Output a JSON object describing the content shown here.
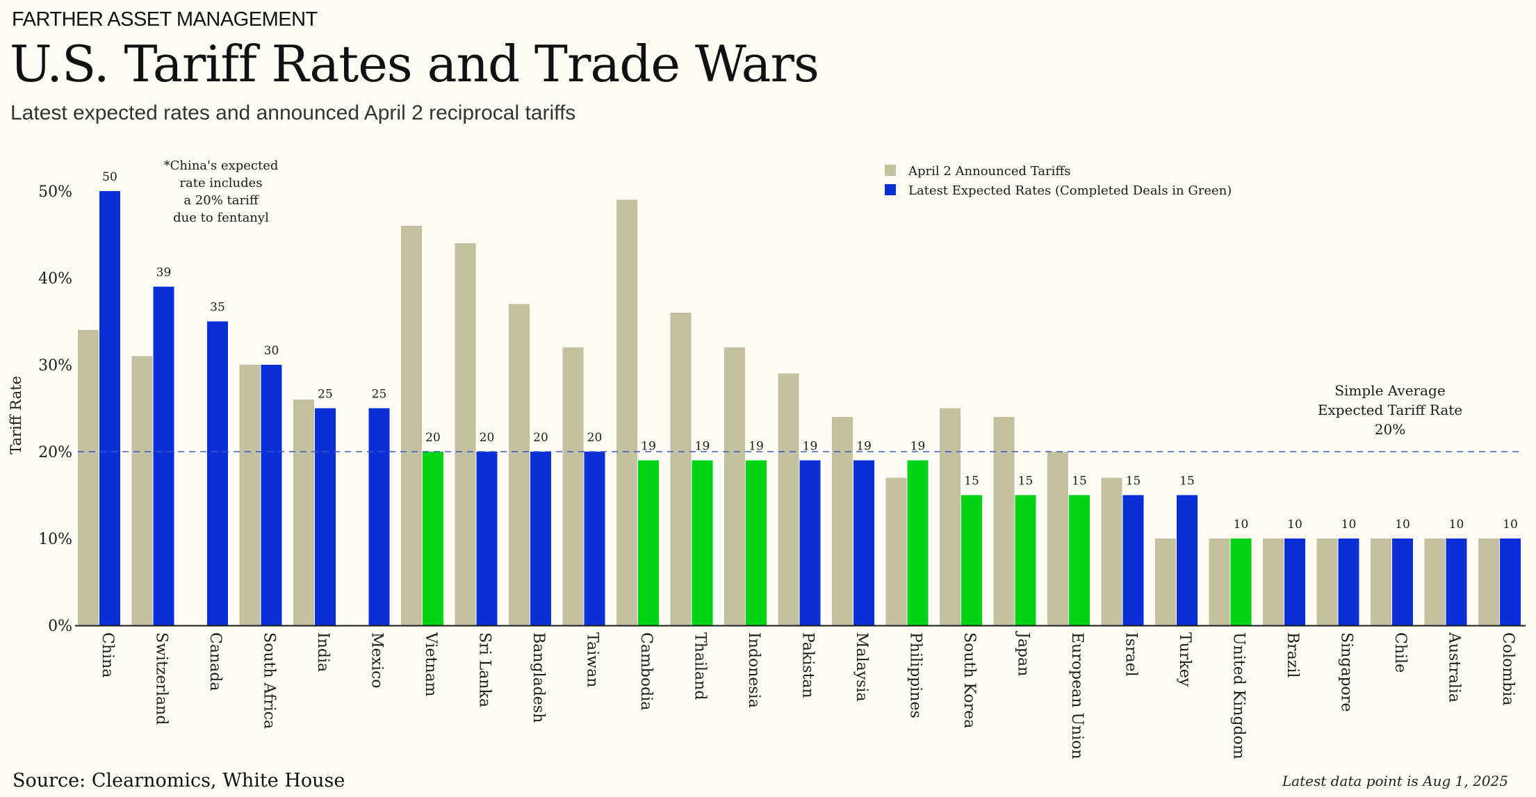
{
  "header": {
    "brand": "FARTHER ASSET MANAGEMENT",
    "title": "U.S. Tariff Rates and Trade Wars",
    "subtitle": "Latest expected rates and announced April 2 reciprocal tariffs"
  },
  "footer": {
    "source": "Source: Clearnomics, White House",
    "latest": "Latest data point is Aug 1, 2025"
  },
  "colors": {
    "announced": "#c3c1a0",
    "expected": "#0a2fd6",
    "completed": "#00d414",
    "average_line": "#3b56c9",
    "axis": "#1a1a1a"
  },
  "chart_data": {
    "type": "bar",
    "ylabel": "Tariff Rate",
    "ylim": [
      0,
      50
    ],
    "yticks": [
      "0%",
      "10%",
      "20%",
      "30%",
      "40%",
      "50%"
    ],
    "ytick_values": [
      0,
      10,
      20,
      30,
      40,
      50
    ],
    "legend_placement": "top-right",
    "categories": [
      "China",
      "Switzerland",
      "Canada",
      "South Africa",
      "India",
      "Mexico",
      "Vietnam",
      "Sri Lanka",
      "Bangladesh",
      "Taiwan",
      "Cambodia",
      "Thailand",
      "Indonesia",
      "Pakistan",
      "Malaysia",
      "Philippines",
      "South Korea",
      "Japan",
      "European Union",
      "Israel",
      "Turkey",
      "United Kingdom",
      "Brazil",
      "Singapore",
      "Chile",
      "Australia",
      "Colombia"
    ],
    "series": [
      {
        "name": "April 2 Announced Tariffs",
        "values": [
          34,
          31,
          null,
          30,
          26,
          null,
          46,
          44,
          37,
          32,
          49,
          36,
          32,
          29,
          24,
          17,
          25,
          24,
          20,
          17,
          10,
          10,
          10,
          10,
          10,
          10,
          10
        ]
      },
      {
        "name": "Latest Expected Rates (Completed Deals in Green)",
        "values": [
          50,
          39,
          35,
          30,
          25,
          25,
          20,
          20,
          20,
          20,
          19,
          19,
          19,
          19,
          19,
          19,
          15,
          15,
          15,
          15,
          15,
          10,
          10,
          10,
          10,
          10,
          10
        ],
        "completed_deal": [
          false,
          false,
          false,
          false,
          false,
          false,
          true,
          false,
          false,
          false,
          true,
          true,
          true,
          false,
          false,
          true,
          true,
          true,
          true,
          false,
          false,
          true,
          false,
          false,
          false,
          false,
          false
        ]
      }
    ],
    "average_line": {
      "value": 20,
      "label": [
        "Simple Average",
        "Expected Tariff Rate",
        "20%"
      ]
    },
    "annotations": [
      {
        "lines": [
          "*China's expected",
          "rate includes",
          "a 20% tariff",
          "due to fentanyl"
        ]
      }
    ]
  }
}
